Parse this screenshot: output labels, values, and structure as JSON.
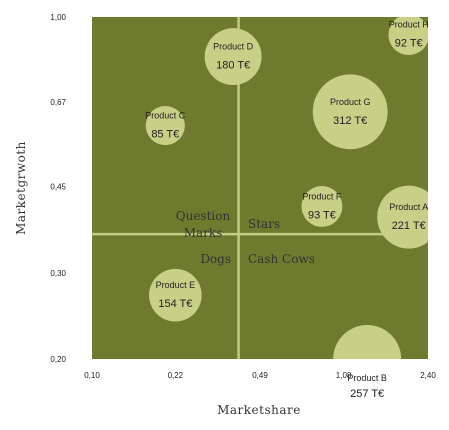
{
  "chart_data": {
    "type": "bubble",
    "xlabel": "Marketshare",
    "ylabel": "Marketgrwoth",
    "x_scale": "log",
    "xlim": [
      0.1,
      2.4
    ],
    "ylim": [
      0.2,
      1.0
    ],
    "x_ticks": [
      "0,10",
      "0,22",
      "0,49",
      "1,08",
      "2,40"
    ],
    "y_ticks": [
      "0,20",
      "0,30",
      "0,45",
      "0,67",
      "1,00"
    ],
    "quadrant_labels": {
      "question_marks": "Question Marks",
      "stars": "Stars",
      "dogs": "Dogs",
      "cash_cows": "Cash Cows"
    },
    "divider": {
      "x": 0.4,
      "y": 0.36
    },
    "points": [
      {
        "name": "Product A",
        "value_label": "221 T€",
        "x": 2.0,
        "y": 0.39,
        "size": 221
      },
      {
        "name": "Product B",
        "value_label": "257 T€",
        "x": 1.35,
        "y": 0.2,
        "size": 257
      },
      {
        "name": "Product C",
        "value_label": "85 T€",
        "x": 0.2,
        "y": 0.6,
        "size": 85
      },
      {
        "name": "Product D",
        "value_label": "180 T€",
        "x": 0.38,
        "y": 0.83,
        "size": 180
      },
      {
        "name": "Product E",
        "value_label": "154 T€",
        "x": 0.22,
        "y": 0.27,
        "size": 154
      },
      {
        "name": "Product F",
        "value_label": "93 T€",
        "x": 0.88,
        "y": 0.41,
        "size": 93
      },
      {
        "name": "Product G",
        "value_label": "312 T€",
        "x": 1.15,
        "y": 0.64,
        "size": 312
      },
      {
        "name": "Product H",
        "value_label": "92 T€",
        "x": 2.0,
        "y": 0.92,
        "size": 92
      }
    ],
    "colors": {
      "plot_background": "#6e7b2e",
      "bubble_fill": "#c8cf86",
      "divider_line": "#c3cc84"
    }
  }
}
